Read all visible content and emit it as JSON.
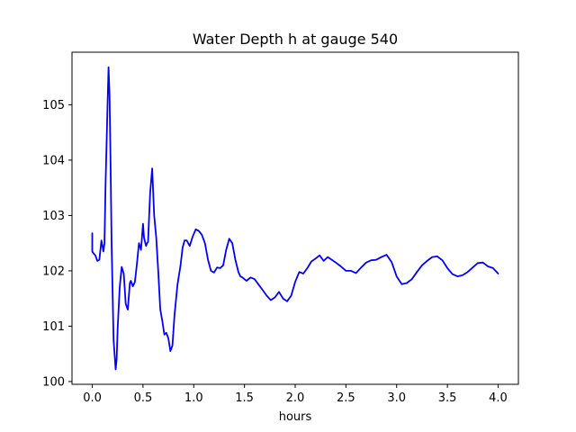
{
  "chart_data": {
    "type": "line",
    "title": "Water Depth h at gauge 540",
    "xlabel": "hours",
    "ylabel": "",
    "xlim": [
      -0.2,
      4.2
    ],
    "ylim": [
      99.95,
      105.95
    ],
    "grid": false,
    "legend": "none",
    "x_ticks": [
      0.0,
      0.5,
      1.0,
      1.5,
      2.0,
      2.5,
      3.0,
      3.5,
      4.0
    ],
    "x_tick_labels": [
      "0.0",
      "0.5",
      "1.0",
      "1.5",
      "2.0",
      "2.5",
      "3.0",
      "3.5",
      "4.0"
    ],
    "y_ticks": [
      100,
      101,
      102,
      103,
      104,
      105
    ],
    "y_tick_labels": [
      "100",
      "101",
      "102",
      "103",
      "104",
      "105"
    ],
    "series": [
      {
        "color": "#0000ff",
        "x": [
          0.0,
          0.0,
          0.01,
          0.03,
          0.05,
          0.07,
          0.09,
          0.11,
          0.12,
          0.13,
          0.15,
          0.16,
          0.17,
          0.18,
          0.19,
          0.21,
          0.23,
          0.24,
          0.25,
          0.27,
          0.29,
          0.31,
          0.33,
          0.35,
          0.37,
          0.38,
          0.4,
          0.42,
          0.44,
          0.46,
          0.48,
          0.5,
          0.51,
          0.53,
          0.54,
          0.55,
          0.57,
          0.59,
          0.61,
          0.63,
          0.64,
          0.65,
          0.67,
          0.69,
          0.71,
          0.73,
          0.75,
          0.77,
          0.79,
          0.81,
          0.84,
          0.87,
          0.89,
          0.91,
          0.93,
          0.96,
          0.99,
          1.02,
          1.05,
          1.08,
          1.11,
          1.14,
          1.17,
          1.2,
          1.23,
          1.26,
          1.29,
          1.32,
          1.35,
          1.38,
          1.41,
          1.44,
          1.46,
          1.48,
          1.5,
          1.52,
          1.56,
          1.6,
          1.64,
          1.68,
          1.72,
          1.76,
          1.8,
          1.84,
          1.88,
          1.92,
          1.96,
          2.0,
          2.04,
          2.08,
          2.12,
          2.16,
          2.2,
          2.24,
          2.28,
          2.32,
          2.36,
          2.4,
          2.45,
          2.5,
          2.55,
          2.6,
          2.65,
          2.7,
          2.75,
          2.8,
          2.85,
          2.9,
          2.95,
          3.0,
          3.05,
          3.1,
          3.15,
          3.2,
          3.25,
          3.3,
          3.35,
          3.4,
          3.45,
          3.5,
          3.55,
          3.6,
          3.65,
          3.7,
          3.75,
          3.8,
          3.85,
          3.9,
          3.95,
          4.0
        ],
        "y": [
          102.68,
          102.35,
          102.32,
          102.28,
          102.18,
          102.2,
          102.55,
          102.35,
          102.5,
          103.5,
          105.0,
          105.68,
          105.2,
          104.0,
          102.5,
          100.75,
          100.22,
          100.4,
          100.95,
          101.7,
          102.07,
          101.95,
          101.4,
          101.3,
          101.78,
          101.82,
          101.72,
          101.8,
          102.12,
          102.5,
          102.38,
          102.85,
          102.6,
          102.45,
          102.5,
          102.52,
          103.4,
          103.85,
          103.0,
          102.6,
          102.3,
          102.0,
          101.3,
          101.1,
          100.85,
          100.88,
          100.78,
          100.55,
          100.65,
          101.2,
          101.75,
          102.1,
          102.42,
          102.55,
          102.55,
          102.45,
          102.62,
          102.75,
          102.72,
          102.65,
          102.5,
          102.2,
          102.0,
          101.97,
          102.06,
          102.05,
          102.1,
          102.38,
          102.58,
          102.5,
          102.2,
          101.98,
          101.9,
          101.88,
          101.85,
          101.82,
          101.88,
          101.85,
          101.75,
          101.65,
          101.55,
          101.47,
          101.52,
          101.62,
          101.5,
          101.45,
          101.55,
          101.8,
          101.98,
          101.95,
          102.05,
          102.17,
          102.22,
          102.28,
          102.18,
          102.25,
          102.2,
          102.15,
          102.08,
          102.0,
          102.0,
          101.96,
          102.06,
          102.15,
          102.19,
          102.2,
          102.25,
          102.29,
          102.16,
          101.9,
          101.76,
          101.78,
          101.85,
          101.98,
          102.1,
          102.18,
          102.25,
          102.26,
          102.19,
          102.05,
          101.94,
          101.9,
          101.92,
          101.98,
          102.06,
          102.14,
          102.15,
          102.08,
          102.05,
          101.95
        ]
      }
    ]
  }
}
